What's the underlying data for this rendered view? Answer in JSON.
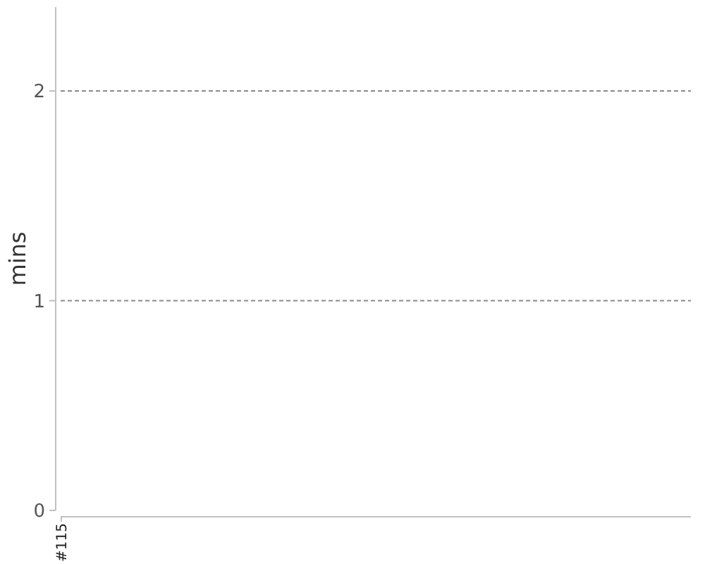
{
  "chart_data": {
    "type": "line",
    "categories": [
      "#115"
    ],
    "values": [
      null
    ],
    "ylabel": "mins",
    "ylim": [
      0,
      2.4
    ],
    "yticks": [
      0,
      1,
      2
    ],
    "grid": "y"
  }
}
